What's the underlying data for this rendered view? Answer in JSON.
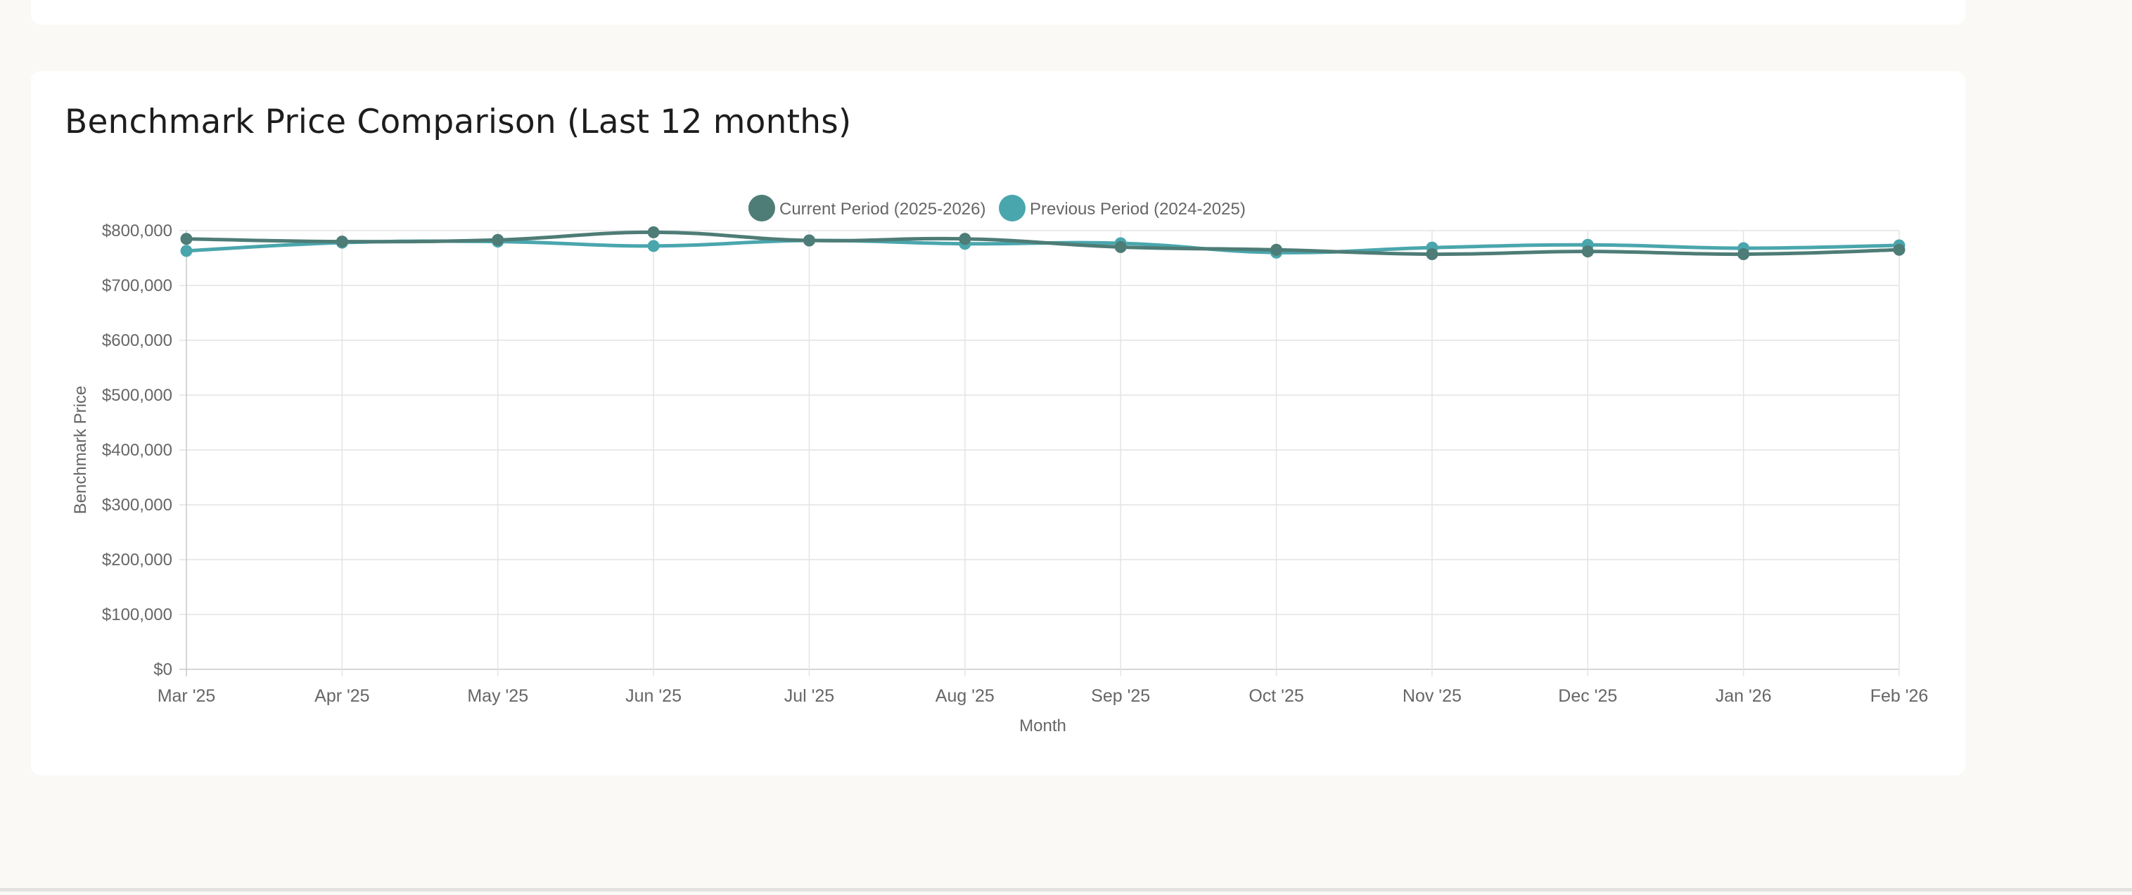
{
  "card": {
    "title": "Benchmark Price Comparison (Last 12 months)"
  },
  "chart_data": {
    "type": "line",
    "title": "Benchmark Price Comparison (Last 12 months)",
    "xlabel": "Month",
    "ylabel": "Benchmark Price",
    "categories": [
      "Mar '25",
      "Apr '25",
      "May '25",
      "Jun '25",
      "Jul '25",
      "Aug '25",
      "Sep '25",
      "Oct '25",
      "Nov '25",
      "Dec '25",
      "Jan '26",
      "Feb '26"
    ],
    "ylim": [
      0,
      800000
    ],
    "yticks": [
      "$0",
      "$100,000",
      "$200,000",
      "$300,000",
      "$400,000",
      "$500,000",
      "$600,000",
      "$700,000",
      "$800,000"
    ],
    "yticks_values": [
      0,
      100000,
      200000,
      300000,
      400000,
      500000,
      600000,
      700000,
      800000
    ],
    "grid": true,
    "legend_position": "top-center",
    "series": [
      {
        "name": "Current Period (2025-2026)",
        "color": "#4e7c76",
        "values": [
          785000,
          780000,
          783000,
          797000,
          782000,
          785000,
          770000,
          765000,
          757000,
          762000,
          757000,
          765000
        ]
      },
      {
        "name": "Previous Period (2024-2025)",
        "color": "#4aa6ad",
        "values": [
          763000,
          778000,
          780000,
          772000,
          782000,
          776000,
          777000,
          760000,
          769000,
          774000,
          768000,
          773000
        ]
      }
    ]
  }
}
